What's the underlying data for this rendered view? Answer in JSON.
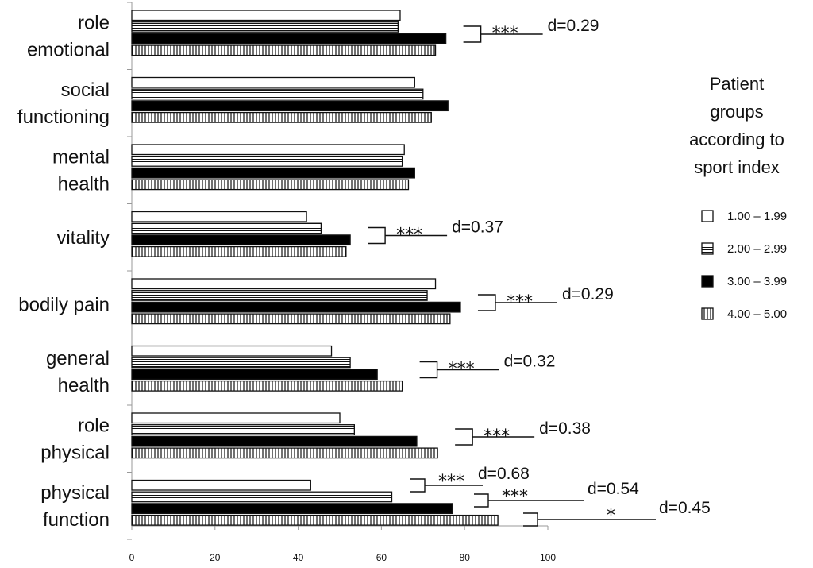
{
  "chart_data": {
    "type": "bar",
    "orientation": "horizontal",
    "categories": [
      [
        "role",
        "emotional"
      ],
      [
        "social",
        "functioning"
      ],
      [
        "mental",
        "health"
      ],
      [
        "vitality"
      ],
      [
        "bodily pain"
      ],
      [
        "general",
        "health"
      ],
      [
        "role",
        "physical"
      ],
      [
        "physical",
        "function"
      ]
    ],
    "series": [
      {
        "name": "1.00 – 1.99",
        "pattern": "white",
        "values": [
          64.5,
          68,
          65.5,
          42,
          73,
          48,
          50,
          43
        ]
      },
      {
        "name": "2.00 – 2.99",
        "pattern": "horizontal-stripes",
        "values": [
          64,
          70,
          65,
          45.5,
          71,
          52.5,
          53.5,
          62.5
        ]
      },
      {
        "name": "3.00 – 3.99",
        "pattern": "black",
        "values": [
          75.5,
          76,
          68,
          52.5,
          79,
          59,
          68.5,
          77
        ]
      },
      {
        "name": "4.00 – 5.00",
        "pattern": "vertical-stripes",
        "values": [
          73,
          72,
          66.5,
          51.5,
          76.5,
          65,
          73.5,
          88
        ]
      }
    ],
    "xlim": [
      0,
      100
    ],
    "xticks": [
      "0",
      "20",
      "40",
      "60",
      "80",
      "100"
    ],
    "legend_title": "Patient groups according to sport index",
    "legend_title_lines": [
      "Patient",
      "groups",
      "according to",
      "sport index"
    ],
    "legend_position": "right",
    "grid": false,
    "annotations": [
      {
        "category": 0,
        "stars": "***",
        "d": "d=0.29"
      },
      {
        "category": 3,
        "stars": "***",
        "d": "d=0.37"
      },
      {
        "category": 4,
        "stars": "***",
        "d": "d=0.29"
      },
      {
        "category": 5,
        "stars": "***",
        "d": "d=0.32"
      },
      {
        "category": 6,
        "stars": "***",
        "d": "d=0.38"
      },
      {
        "category": 7,
        "stars": "***",
        "d": "d=0.68"
      },
      {
        "category": 7,
        "stars": "***",
        "d": "d=0.54"
      },
      {
        "category": 7,
        "stars": "*",
        "d": "d=0.45"
      }
    ]
  }
}
